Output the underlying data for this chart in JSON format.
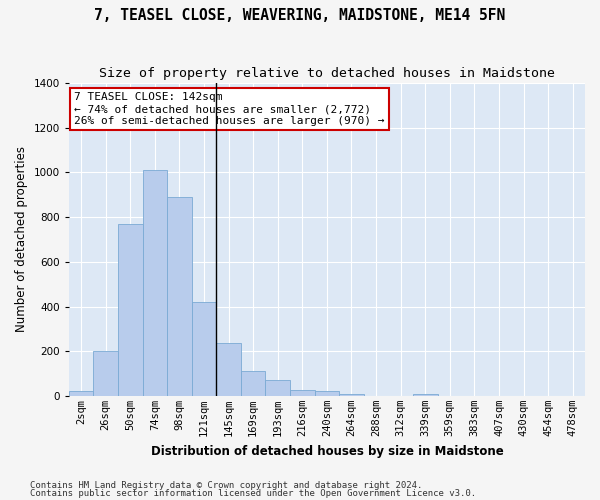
{
  "title": "7, TEASEL CLOSE, WEAVERING, MAIDSTONE, ME14 5FN",
  "subtitle": "Size of property relative to detached houses in Maidstone",
  "xlabel": "Distribution of detached houses by size in Maidstone",
  "ylabel": "Number of detached properties",
  "footnote1": "Contains HM Land Registry data © Crown copyright and database right 2024.",
  "footnote2": "Contains public sector information licensed under the Open Government Licence v3.0.",
  "bar_color": "#b8ccec",
  "bar_edge_color": "#7aaad4",
  "background_color": "#dde8f5",
  "annotation_text": "7 TEASEL CLOSE: 142sqm\n← 74% of detached houses are smaller (2,772)\n26% of semi-detached houses are larger (970) →",
  "annotation_box_color": "#ffffff",
  "annotation_box_edgecolor": "#cc0000",
  "property_size_sqm": 142,
  "categories": [
    "2sqm",
    "26sqm",
    "50sqm",
    "74sqm",
    "98sqm",
    "121sqm",
    "145sqm",
    "169sqm",
    "193sqm",
    "216sqm",
    "240sqm",
    "264sqm",
    "288sqm",
    "312sqm",
    "339sqm",
    "359sqm",
    "383sqm",
    "407sqm",
    "430sqm",
    "454sqm",
    "478sqm"
  ],
  "values": [
    20,
    200,
    770,
    1010,
    890,
    420,
    235,
    110,
    70,
    25,
    20,
    10,
    0,
    0,
    10,
    0,
    0,
    0,
    0,
    0,
    0
  ],
  "line_index": 6,
  "ylim": [
    0,
    1400
  ],
  "yticks": [
    0,
    200,
    400,
    600,
    800,
    1000,
    1200,
    1400
  ],
  "grid_color": "#ffffff",
  "title_fontsize": 10.5,
  "subtitle_fontsize": 9.5,
  "axis_label_fontsize": 8.5,
  "tick_fontsize": 7.5,
  "footnote_fontsize": 6.5,
  "annotation_fontsize": 8.0
}
